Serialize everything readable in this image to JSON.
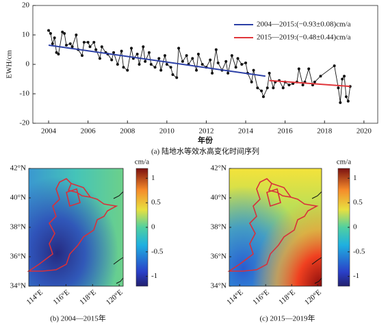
{
  "chart_data": [
    {
      "type": "line",
      "ylabel": "EWH/cm",
      "xlabel": "年份",
      "caption": "(a) 陆地水等效水高变化时间序列",
      "xlim": [
        2003.2,
        2020.7
      ],
      "ylim": [
        -20,
        20
      ],
      "xticks": [
        2004,
        2006,
        2008,
        2010,
        2012,
        2014,
        2016,
        2018,
        2020
      ],
      "yticks": [
        -20,
        -10,
        0,
        10,
        20
      ],
      "legend": "upper right",
      "series": [
        {
          "color": "#111111",
          "marker": "circle",
          "x": [
            2004.0,
            2004.1,
            2004.2,
            2004.3,
            2004.4,
            2004.5,
            2004.7,
            2004.8,
            2004.9,
            2005.1,
            2005.2,
            2005.4,
            2005.5,
            2005.7,
            2005.8,
            2006.0,
            2006.1,
            2006.3,
            2006.4,
            2006.6,
            2006.7,
            2006.9,
            2007.0,
            2007.2,
            2007.3,
            2007.5,
            2007.7,
            2007.8,
            2008.0,
            2008.2,
            2008.3,
            2008.5,
            2008.6,
            2008.8,
            2008.9,
            2009.1,
            2009.2,
            2009.4,
            2009.6,
            2009.7,
            2009.9,
            2010.0,
            2010.2,
            2010.3,
            2010.5,
            2010.6,
            2010.8,
            2011.0,
            2011.1,
            2011.3,
            2011.5,
            2011.6,
            2011.8,
            2012.0,
            2012.2,
            2012.3,
            2012.5,
            2012.6,
            2012.8,
            2013.0,
            2013.1,
            2013.3,
            2013.5,
            2013.6,
            2013.8,
            2014.0,
            2014.1,
            2014.3,
            2014.4,
            2014.6,
            2014.8,
            2014.9,
            2015.1,
            2015.2,
            2015.4,
            2015.5,
            2015.7,
            2015.9,
            2016.0,
            2016.2,
            2016.4,
            2016.6,
            2016.7,
            2016.9,
            2017.0,
            2017.2,
            2017.4,
            2017.5,
            2017.8,
            2018.5,
            2018.7,
            2018.8,
            2018.9,
            2019.0,
            2019.1,
            2019.2,
            2019.3
          ],
          "values": [
            11.5,
            10.5,
            7,
            9,
            4,
            3.5,
            11,
            10.5,
            6.5,
            7,
            6,
            10,
            5,
            3,
            7.5,
            7.5,
            6,
            7.5,
            5,
            2,
            6,
            4,
            3.5,
            1.5,
            4,
            0,
            4.5,
            -1,
            -2,
            5.5,
            2,
            3.5,
            0,
            6,
            1,
            4,
            0,
            -1,
            2,
            -2,
            3,
            0,
            -1,
            -3.5,
            -4.5,
            5.5,
            1,
            3,
            0,
            2,
            -2,
            3.5,
            0,
            -1,
            1.5,
            -3,
            5,
            0.5,
            -2,
            1,
            -3,
            3,
            -1,
            2,
            0,
            0.5,
            -3,
            -6,
            -2,
            -8,
            -9,
            -11,
            -8,
            -3,
            -8,
            -6,
            -5.5,
            -8,
            -6,
            -7,
            -6.5,
            -6,
            -1.5,
            -7,
            -6,
            -1.5,
            -7,
            -6,
            -4,
            -0.5,
            -8,
            -13,
            -5,
            -4,
            -11,
            -12.5,
            -7.5
          ]
        },
        {
          "name": "2004—2015:(−0.93±0.08)cm/a",
          "color": "#2b3fa6",
          "x": [
            2004,
            2015
          ],
          "values": [
            6.5,
            -4
          ]
        },
        {
          "name": "2015—2019:(−0.48±0.44)cm/a",
          "color": "#e0353a",
          "x": [
            2015.2,
            2019.3
          ],
          "values": [
            -5.5,
            -7.5
          ]
        }
      ]
    },
    {
      "type": "map",
      "caption": "(b) 2004—2015年",
      "colorbar_label": "cm/a",
      "xlim": [
        113.2,
        120.3
      ],
      "ylim": [
        34,
        42
      ],
      "xticks": [
        {
          "value": 114,
          "label": "114°E"
        },
        {
          "value": 116,
          "label": "116°E"
        },
        {
          "value": 118,
          "label": "118°E"
        },
        {
          "value": 120,
          "label": "120°E"
        }
      ],
      "yticks": [
        {
          "value": 34,
          "label": "34°N"
        },
        {
          "value": 36,
          "label": "36°N"
        },
        {
          "value": 38,
          "label": "38°N"
        },
        {
          "value": 40,
          "label": "40°N"
        },
        {
          "value": 42,
          "label": "42°N"
        }
      ],
      "clim": [
        -1.2,
        1.2
      ],
      "cticks": [
        -1,
        -0.5,
        0,
        0.5,
        1
      ]
    },
    {
      "type": "map",
      "caption": "(c) 2015—2019年",
      "colorbar_label": "cm/a",
      "xlim": [
        113.2,
        120.3
      ],
      "ylim": [
        34,
        42
      ],
      "xticks": [
        {
          "value": 114,
          "label": "114°E"
        },
        {
          "value": 116,
          "label": "116°E"
        },
        {
          "value": 118,
          "label": "118°E"
        },
        {
          "value": 120,
          "label": "120°E"
        }
      ],
      "yticks": [
        {
          "value": 34,
          "label": "34°N"
        },
        {
          "value": 36,
          "label": "36°N"
        },
        {
          "value": 38,
          "label": "38°N"
        },
        {
          "value": 40,
          "label": "40°N"
        },
        {
          "value": 42,
          "label": "42°N"
        }
      ],
      "clim": [
        -1.2,
        1.2
      ],
      "cticks": [
        -1,
        -0.5,
        0,
        0.5,
        1
      ]
    }
  ]
}
